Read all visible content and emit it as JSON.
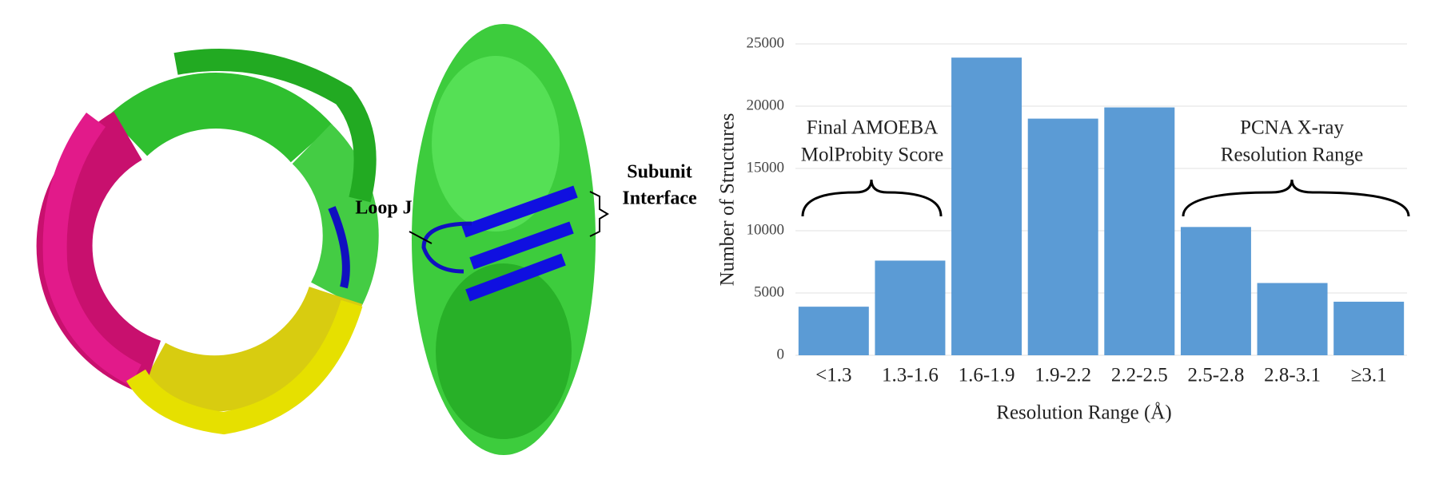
{
  "structure_labels": {
    "loop": "Loop J",
    "interface": [
      "Subunit",
      "Interface"
    ]
  },
  "chart_data": {
    "type": "bar",
    "categories": [
      "<1.3",
      "1.3-1.6",
      "1.6-1.9",
      "1.9-2.2",
      "2.2-2.5",
      "2.5-2.8",
      "2.8-3.1",
      "≥3.1"
    ],
    "values": [
      3900,
      7600,
      23900,
      19000,
      19900,
      10300,
      5800,
      4300
    ],
    "color": "#5b9bd5",
    "x_label": "Resolution Range (Å)",
    "y_label": "Number of Structures",
    "ylim": [
      0,
      25000
    ],
    "yticks": [
      0,
      5000,
      10000,
      15000,
      20000,
      25000
    ],
    "grid": true,
    "annotations": [
      [
        "Final AMOEBA",
        "MolProbity Score"
      ],
      [
        "PCNA X-ray",
        "Resolution Range"
      ]
    ]
  }
}
